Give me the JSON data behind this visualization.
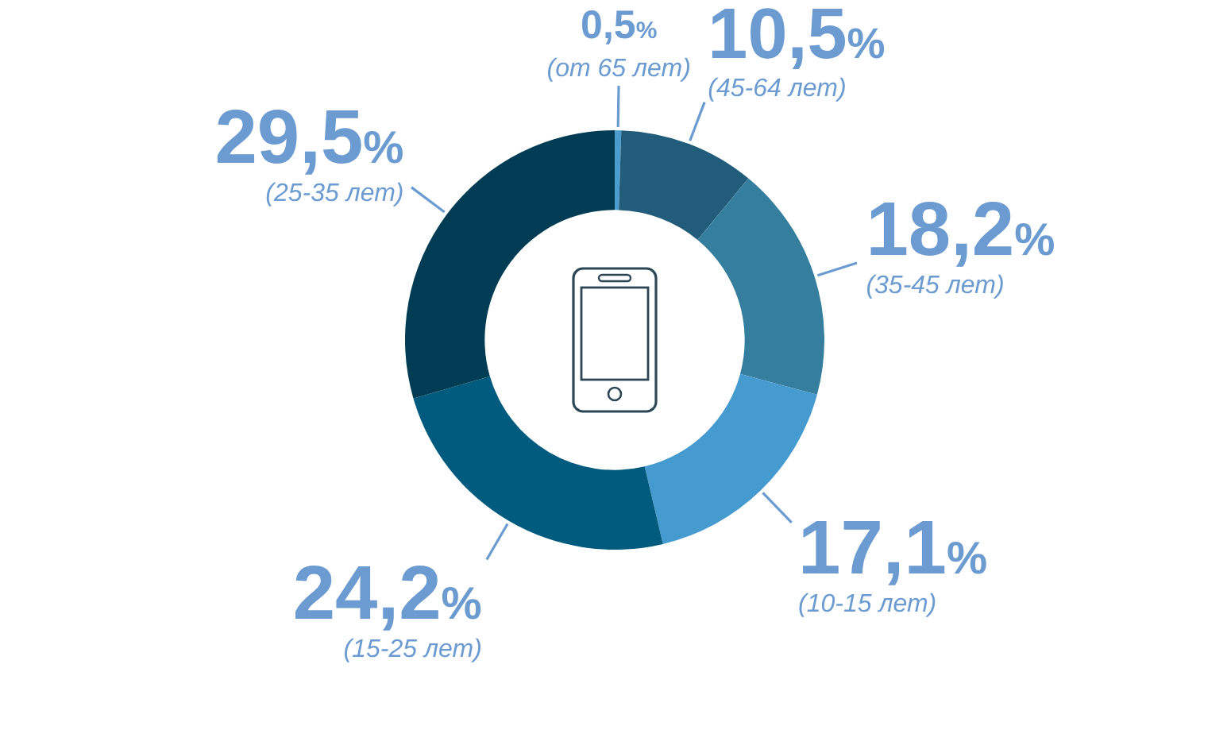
{
  "chart_data": {
    "type": "donut",
    "categories": [
      "(от 65 лет)",
      "(45-64 лет)",
      "(35-45 лет)",
      "(10-15 лет)",
      "(15-25 лет)",
      "(25-35 лет)"
    ],
    "values": [
      0.5,
      10.5,
      18.2,
      17.1,
      24.2,
      29.5
    ],
    "colors": [
      "#4a9ccf",
      "#215d7b",
      "#357e9e",
      "#459ad0",
      "#005b7f",
      "#013c55"
    ],
    "value_labels": [
      "0,5%",
      "10,5%",
      "18,2%",
      "17,1%",
      "24,2%",
      "29,5%"
    ]
  }
}
